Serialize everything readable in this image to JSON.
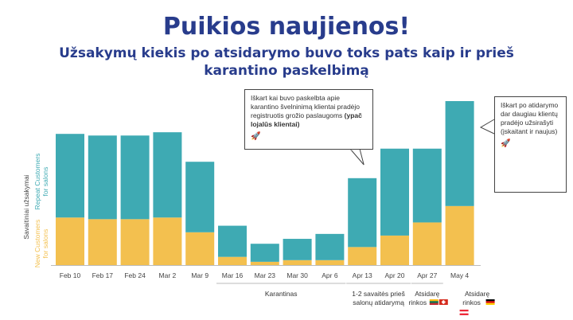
{
  "title": "Puikios naujienos!",
  "subtitle_line1": "Užsakymų kiekis po atsidarymo buvo toks pats kaip ir prieš",
  "subtitle_line2": "karantino paskelbimą",
  "colors": {
    "new": "#f3c04f",
    "repeat": "#3eaab3",
    "title": "#283c8c",
    "axis_label_green": "#9dbf4a",
    "axis_label_dark": "#444444"
  },
  "chart_data": {
    "type": "bar",
    "stacked": true,
    "categories": [
      "Feb 10",
      "Feb 17",
      "Feb 24",
      "Mar 2",
      "Mar 9",
      "Mar 16",
      "Mar 23",
      "Mar 30",
      "Apr 6",
      "Apr 13",
      "Apr 20",
      "Apr 27",
      "May 4"
    ],
    "series": [
      {
        "name": "New Customers for salons",
        "values": [
          29,
          28,
          28,
          29,
          20,
          5,
          2,
          3,
          3,
          11,
          18,
          26,
          36
        ]
      },
      {
        "name": "Repeat Customers for salons",
        "values": [
          51,
          51,
          51,
          52,
          43,
          19,
          11,
          13,
          16,
          42,
          53,
          45,
          64
        ]
      }
    ],
    "ylabel": "Savaitiniai užsakymai",
    "y_scale_note": "no numeric ticks printed",
    "group_labels": [
      {
        "text": "Karantinas",
        "from": "Mar 16",
        "to": "Apr 6"
      },
      {
        "text_lines": [
          "1-2 savaitės prieš",
          "salonų atidarymą"
        ],
        "from": "Apr 13",
        "to": "Apr 20"
      },
      {
        "text_lines": [
          "Atsidarę",
          "rinkos"
        ],
        "at": "Apr 27",
        "flags": [
          "lithuania-flag-icon",
          "swiss-flag-icon"
        ]
      },
      {
        "text_lines": [
          "Atsidarę",
          "rinkos"
        ],
        "at": "May 4",
        "flags": [
          "germany-flag-icon",
          "austria-flag-icon"
        ]
      }
    ],
    "annotations": [
      {
        "id": "callout1",
        "at": "Apr 13",
        "text": "Iškart kai buvo paskelbta apie karantino švelninimą klientai pradėjo registruotis grožio paslaugoms",
        "bold": "(ypač lojalūs klientai)",
        "icon": "rocket-icon"
      },
      {
        "id": "callout2",
        "at": "May 4",
        "text": "Iškart po atidarymo dar daugiau klientų pradėjo užsirašyti (įskaitant ir naujus)",
        "icon": "rocket-icon"
      }
    ]
  }
}
